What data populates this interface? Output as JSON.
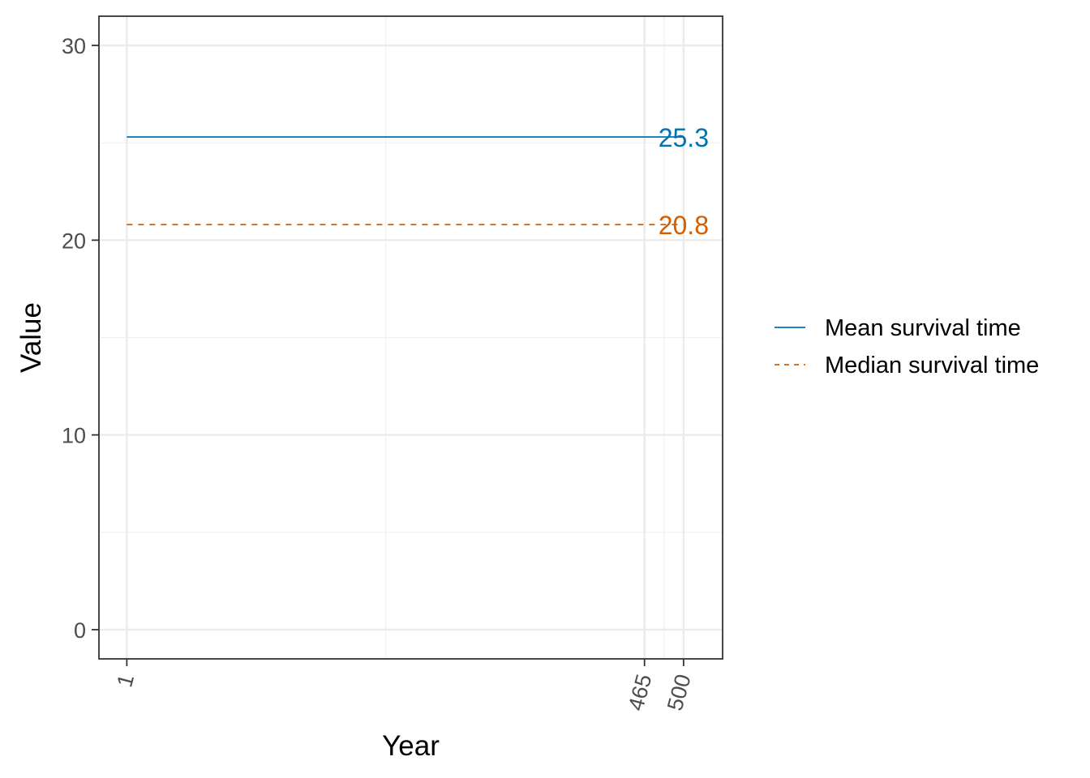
{
  "chart_data": {
    "type": "line",
    "xlabel": "Year",
    "ylabel": "Value",
    "xlim": [
      -24,
      535
    ],
    "ylim": [
      -1.5,
      31.5
    ],
    "x_ticks": [
      1,
      465,
      500
    ],
    "x_tick_labels": [
      "1",
      "465",
      "500"
    ],
    "x_minor_gridlines": [
      233,
      482.5
    ],
    "y_ticks": [
      0,
      10,
      20,
      30
    ],
    "y_tick_labels": [
      "0",
      "10",
      "20",
      "30"
    ],
    "y_minor_gridlines": [
      5,
      15,
      25
    ],
    "grid": true,
    "legend_position": "right",
    "series": [
      {
        "name": "Mean survival time",
        "x": [
          1,
          500
        ],
        "values": [
          25.3,
          25.3
        ],
        "color": "#0072B2",
        "dash": "solid",
        "end_label": "25.3"
      },
      {
        "name": "Median survival time",
        "x": [
          1,
          500
        ],
        "values": [
          20.8,
          20.8
        ],
        "color": "#D55E00",
        "dash": "dashed",
        "end_label": "20.8"
      }
    ]
  }
}
